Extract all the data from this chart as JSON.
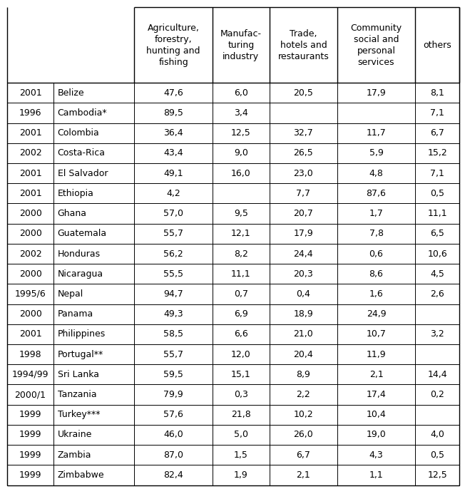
{
  "col_headers": [
    "Agriculture,\nforestry,\nhunting and\nfishing",
    "Manufac-\nturing\nindustry",
    "Trade,\nhotels and\nrestaurants",
    "Community\nsocial and\npersonal\nservices",
    "others"
  ],
  "rows": [
    {
      "year": "2001",
      "country": "Belize",
      "vals": [
        "47,6",
        "6,0",
        "20,5",
        "17,9",
        "8,1"
      ]
    },
    {
      "year": "1996",
      "country": "Cambodia*",
      "vals": [
        "89,5",
        "3,4",
        "",
        "",
        "7,1"
      ]
    },
    {
      "year": "2001",
      "country": "Colombia",
      "vals": [
        "36,4",
        "12,5",
        "32,7",
        "11,7",
        "6,7"
      ]
    },
    {
      "year": "2002",
      "country": "Costa-Rica",
      "vals": [
        "43,4",
        "9,0",
        "26,5",
        "5,9",
        "15,2"
      ]
    },
    {
      "year": "2001",
      "country": "El Salvador",
      "vals": [
        "49,1",
        "16,0",
        "23,0",
        "4,8",
        "7,1"
      ]
    },
    {
      "year": "2001",
      "country": "Ethiopia",
      "vals": [
        "4,2",
        "",
        "7,7",
        "87,6",
        "0,5"
      ]
    },
    {
      "year": "2000",
      "country": "Ghana",
      "vals": [
        "57,0",
        "9,5",
        "20,7",
        "1,7",
        "11,1"
      ]
    },
    {
      "year": "2000",
      "country": "Guatemala",
      "vals": [
        "55,7",
        "12,1",
        "17,9",
        "7,8",
        "6,5"
      ]
    },
    {
      "year": "2002",
      "country": "Honduras",
      "vals": [
        "56,2",
        "8,2",
        "24,4",
        "0,6",
        "10,6"
      ]
    },
    {
      "year": "2000",
      "country": "Nicaragua",
      "vals": [
        "55,5",
        "11,1",
        "20,3",
        "8,6",
        "4,5"
      ]
    },
    {
      "year": "1995/6",
      "country": "Nepal",
      "vals": [
        "94,7",
        "0,7",
        "0,4",
        "1,6",
        "2,6"
      ]
    },
    {
      "year": "2000",
      "country": "Panama",
      "vals": [
        "49,3",
        "6,9",
        "18,9",
        "24,9",
        ""
      ]
    },
    {
      "year": "2001",
      "country": "Philippines",
      "vals": [
        "58,5",
        "6,6",
        "21,0",
        "10,7",
        "3,2"
      ]
    },
    {
      "year": "1998",
      "country": "Portugal**",
      "vals": [
        "55,7",
        "12,0",
        "20,4",
        "11,9",
        ""
      ]
    },
    {
      "year": "1994/99",
      "country": "Sri Lanka",
      "vals": [
        "59,5",
        "15,1",
        "8,9",
        "2,1",
        "14,4"
      ]
    },
    {
      "year": "2000/1",
      "country": "Tanzania",
      "vals": [
        "79,9",
        "0,3",
        "2,2",
        "17,4",
        "0,2"
      ]
    },
    {
      "year": "1999",
      "country": "Turkey***",
      "vals": [
        "57,6",
        "21,8",
        "10,2",
        "10,4",
        ""
      ]
    },
    {
      "year": "1999",
      "country": "Ukraine",
      "vals": [
        "46,0",
        "5,0",
        "26,0",
        "19,0",
        "4,0"
      ]
    },
    {
      "year": "1999",
      "country": "Zambia",
      "vals": [
        "87,0",
        "1,5",
        "6,7",
        "4,3",
        "0,5"
      ]
    },
    {
      "year": "1999",
      "country": "Zimbabwe",
      "vals": [
        "82,4",
        "1,9",
        "2,1",
        "1,1",
        "12,5"
      ]
    }
  ],
  "background_color": "#ffffff",
  "text_color": "#000000",
  "line_color": "#000000",
  "font_size": 9.0,
  "header_font_size": 9.0,
  "fig_width": 6.52,
  "fig_height": 6.86,
  "dpi": 100
}
